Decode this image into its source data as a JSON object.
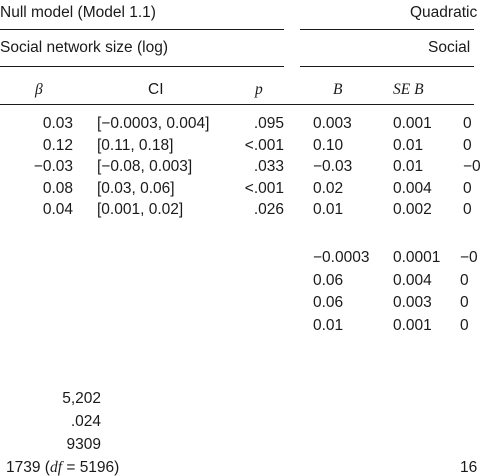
{
  "headers": {
    "null_model": "Null model (Model 1.1)",
    "quadratic_model": "Quadratic",
    "social_network_left": "Social network size (log)",
    "social_network_right": "Social",
    "col_beta": "β",
    "col_ci": "CI",
    "col_p": "p",
    "col_B": "B",
    "col_SEB": "SE B"
  },
  "rows": [
    {
      "beta": "0.03",
      "ci": "[−0.0003, 0.004]",
      "p": ".095",
      "B": "0.003",
      "seb": "0.001"
    },
    {
      "beta": "0.12",
      "ci": "[0.11, 0.18]",
      "p": "<.001",
      "B": "0.10",
      "seb": "0.01"
    },
    {
      "beta": "−0.03",
      "ci": "[−0.08, 0.003]",
      "p": ".033",
      "B": "−0.03",
      "seb": "0.01"
    },
    {
      "beta": "0.08",
      "ci": "[0.03, 0.06]",
      "p": "<.001",
      "B": "0.02",
      "seb": "0.004"
    },
    {
      "beta": "0.04",
      "ci": "[0.001, 0.02]",
      "p": ".026",
      "B": "0.01",
      "seb": "0.002"
    }
  ],
  "quad_rows": [
    {
      "B": "−0.0003",
      "seb": "0.0001"
    },
    {
      "B": "0.06",
      "seb": "0.004"
    },
    {
      "B": "0.06",
      "seb": "0.003"
    },
    {
      "B": "0.01",
      "seb": "0.001"
    }
  ],
  "edge_partials": {
    "right_col_rows": [
      "0",
      "0",
      "−0",
      "0",
      "0"
    ],
    "right_col_quad": [
      "−0",
      "0",
      "0",
      "0"
    ],
    "bottom_right": "16"
  },
  "model_stats": {
    "n": "5,202",
    "icc": ".024",
    "stat": "9309",
    "chi_value": "1739",
    "df_label": "df",
    "df_value": "5196"
  }
}
